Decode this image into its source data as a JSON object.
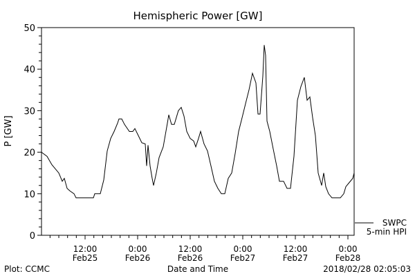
{
  "chart_data": {
    "type": "line",
    "title": "Hemispheric Power [GW]",
    "xlabel": "Date and Time",
    "ylabel": "P [GW]",
    "x_units": "hours since 2018-02-25 00:00 UT",
    "xlim": [
      2.05,
      73.42
    ],
    "ylim": [
      0,
      50
    ],
    "yticks": [
      0,
      10,
      20,
      30,
      40,
      50
    ],
    "yminor_step": 2,
    "xminor_step": 2,
    "xticks": [
      {
        "x": 12,
        "time": "12:00",
        "date": "Feb25"
      },
      {
        "x": 24,
        "time": "0:00",
        "date": "Feb26"
      },
      {
        "x": 36,
        "time": "12:00",
        "date": "Feb26"
      },
      {
        "x": 48,
        "time": "0:00",
        "date": "Feb27"
      },
      {
        "x": 60,
        "time": "12:00",
        "date": "Feb27"
      },
      {
        "x": 72,
        "time": "0:00",
        "date": "Feb28"
      }
    ],
    "legend": {
      "placement": "right-bottom-outside",
      "line1": "SWPC",
      "line2": "5-min HPI"
    },
    "grid": false,
    "series": [
      {
        "name": "SWPC 5-min HPI",
        "color": "#000000",
        "x": [
          2.05,
          3.32,
          4.42,
          6.0,
          6.79,
          7.26,
          7.9,
          8.53,
          9.47,
          9.95,
          13.9,
          14.21,
          15.47,
          16.26,
          17.05,
          17.84,
          18.63,
          19.42,
          19.74,
          20.37,
          21.0,
          22.1,
          22.89,
          23.37,
          24.16,
          24.95,
          25.74,
          26.05,
          26.37,
          26.84,
          27.31,
          27.63,
          28.26,
          28.89,
          29.84,
          30.79,
          31.1,
          31.74,
          32.37,
          33.3,
          33.95,
          34.58,
          35.21,
          36.0,
          36.79,
          37.26,
          37.89,
          38.37,
          39.16,
          39.95,
          40.74,
          41.53,
          42.32,
          43.1,
          43.9,
          44.68,
          45.47,
          46.26,
          47.05,
          47.84,
          48.63,
          49.42,
          50.21,
          51.0,
          51.47,
          51.95,
          52.58,
          52.89,
          53.21,
          53.52,
          54.16,
          54.95,
          55.74,
          56.37,
          57.32,
          58.1,
          58.9,
          59.68,
          60.47,
          61.26,
          62.05,
          62.68,
          63.32,
          63.95,
          64.58,
          65.21,
          66.0,
          66.47,
          66.95,
          67.58,
          68.37,
          70.26,
          71.05,
          71.53,
          72.32,
          73.1,
          73.42
        ],
        "y": [
          20,
          19,
          17,
          15,
          13,
          13.7,
          11.3,
          10.7,
          10,
          9,
          9,
          10,
          10,
          13.3,
          20.3,
          23.3,
          25,
          27,
          28,
          28,
          26.7,
          25,
          25,
          25.7,
          24,
          22.3,
          22,
          16.7,
          21.7,
          16.7,
          13.7,
          12,
          15,
          18.7,
          21.3,
          27,
          29,
          26.7,
          26.7,
          30,
          30.8,
          28.7,
          25,
          23.3,
          22.7,
          21.3,
          23.3,
          25,
          22,
          20.3,
          16.7,
          13,
          11.3,
          10,
          10,
          13.7,
          15,
          19.7,
          25,
          28.3,
          31.7,
          35,
          39,
          36.7,
          29.2,
          29.2,
          38.3,
          45.8,
          43.3,
          27.5,
          25,
          20.8,
          16.7,
          13,
          13,
          11.3,
          11.3,
          19,
          32.5,
          35.8,
          38,
          32.5,
          33.3,
          28.3,
          24,
          15,
          12,
          15,
          11.7,
          10,
          9,
          9,
          10,
          11.7,
          12.7,
          13.7,
          15
        ]
      }
    ]
  },
  "footer": {
    "left": "Plot: CCMC",
    "right": "2018/02/28 02:05:03"
  }
}
